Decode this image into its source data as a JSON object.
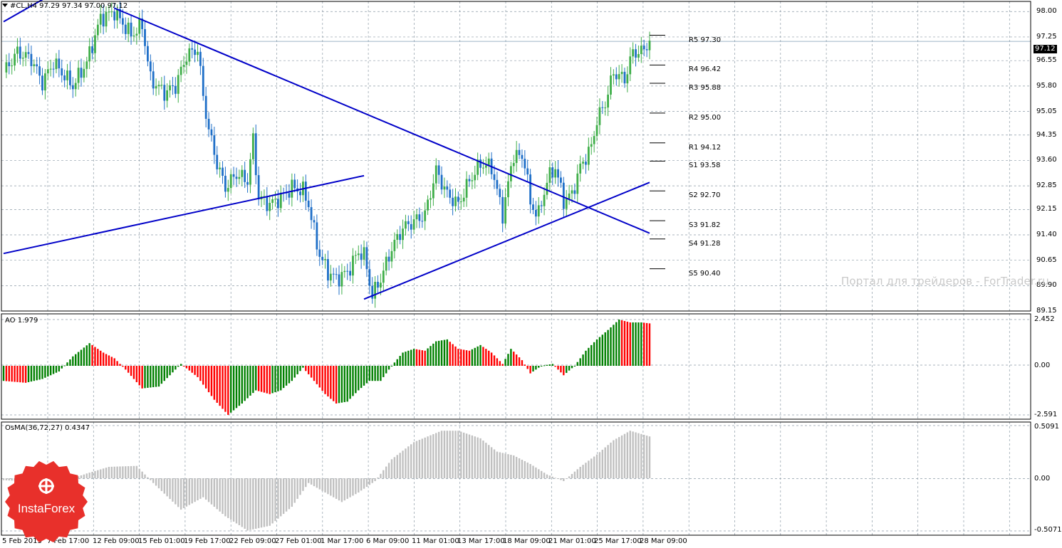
{
  "header": {
    "symbol_line": "#CL,H4  97.29 97.34 97.00 97.12"
  },
  "price_axis": {
    "ticks": [
      "98.00",
      "97.25",
      "96.55",
      "95.80",
      "95.05",
      "94.35",
      "93.60",
      "92.85",
      "92.15",
      "91.40",
      "90.65",
      "89.90",
      "89.15"
    ],
    "current_price": "97.12",
    "range": [
      89.15,
      98.3
    ]
  },
  "ao_panel": {
    "label": "AO 1.979",
    "ticks": [
      "2.452",
      "0.00",
      "-2.591"
    ]
  },
  "osma_panel": {
    "label": "OsMA(36,72,27) 0.4347",
    "ticks": [
      "0.5091",
      "0.00",
      "-0.5071"
    ]
  },
  "time_axis": [
    "5 Feb 2013",
    "7 Feb 17:00",
    "12 Feb 09:00",
    "15 Feb 01:00",
    "19 Feb 17:00",
    "22 Feb 09:00",
    "27 Feb 01:00",
    "1 Mar 17:00",
    "6 Mar 09:00",
    "11 Mar 01:00",
    "13 Mar 17:00",
    "18 Mar 09:00",
    "21 Mar 01:00",
    "25 Mar 17:00",
    "28 Mar 09:00"
  ],
  "pivots": [
    {
      "label": "R5 97.30",
      "value": 97.3
    },
    {
      "label": "R4 96.42",
      "value": 96.42
    },
    {
      "label": "R3 95.88",
      "value": 95.88
    },
    {
      "label": "R2 95.00",
      "value": 95.0
    },
    {
      "label": "R1 94.12",
      "value": 94.12
    },
    {
      "label": "S1 93.58",
      "value": 93.58
    },
    {
      "label": "S2 92.70",
      "value": 92.7
    },
    {
      "label": "S3 91.82",
      "value": 91.82
    },
    {
      "label": "S4 91.28",
      "value": 91.28
    },
    {
      "label": "S5 90.40",
      "value": 90.4
    }
  ],
  "watermark": "Портал для трейдеров - ForTrader.ru",
  "logo": {
    "text": "InstaForex",
    "color": "#e8302b"
  },
  "colors": {
    "bull": "#3fae49",
    "bear": "#1f6fc8",
    "ao_up": "#008000",
    "ao_down": "#ff0000",
    "osma": "#c0c0c0",
    "trendline": "#0000c8",
    "grid": "#8c9aa6"
  },
  "chart_data": {
    "type": "candlestick",
    "ylim": [
      89.15,
      98.3
    ],
    "trendlines": [
      {
        "x": [
          0,
          15
        ],
        "y": [
          97.7,
          98.4
        ]
      },
      {
        "x": [
          0,
          130
        ],
        "y": [
          90.85,
          93.15
        ]
      },
      {
        "x": [
          40,
          233
        ],
        "y": [
          98.1,
          91.45
        ]
      },
      {
        "x": [
          130,
          233
        ],
        "y": [
          89.5,
          92.95
        ]
      }
    ]
  }
}
